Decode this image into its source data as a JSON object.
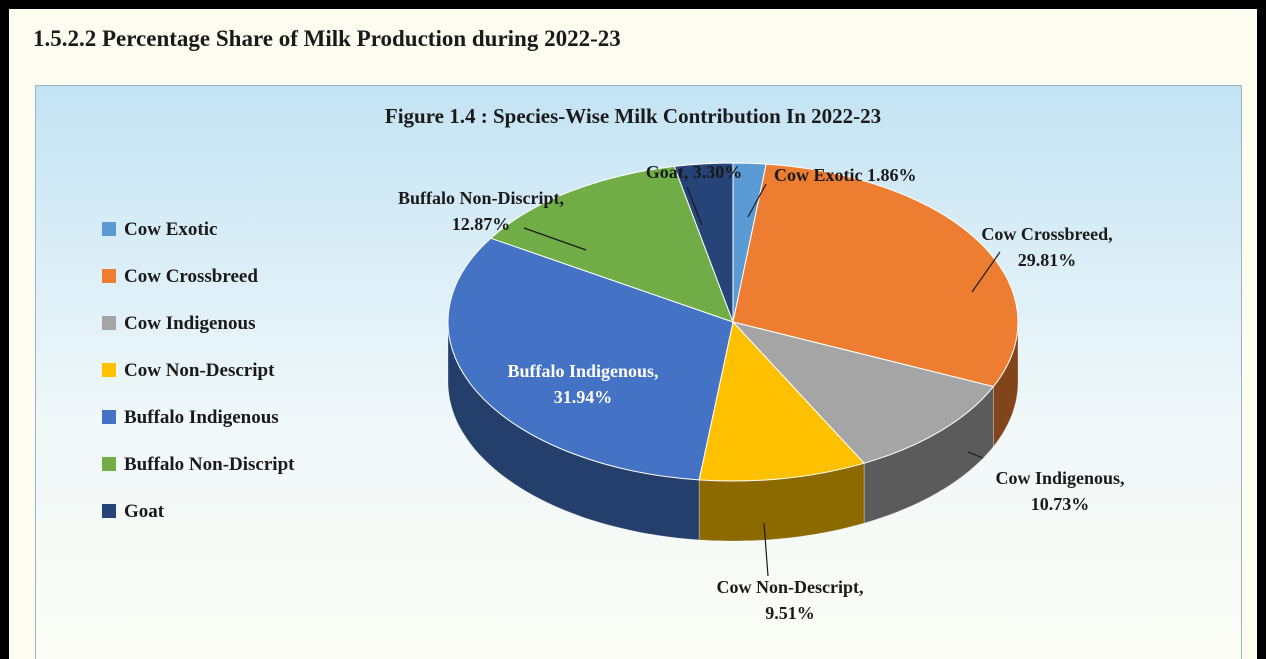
{
  "heading": "1.5.2.2  Percentage Share of Milk Production during 2022-23",
  "chart_data": {
    "type": "pie",
    "title": "Figure 1.4 : Species-Wise Milk Contribution In 2022-23",
    "legend_position": "left",
    "three_d": true,
    "slices": [
      {
        "name": "Cow Exotic",
        "value": 1.86,
        "label_lines": [
          "Cow Exotic 1.86%"
        ],
        "color": "#5b9bd5"
      },
      {
        "name": "Cow Crossbreed",
        "value": 29.81,
        "label_lines": [
          "Cow Crossbreed,",
          "29.81%"
        ],
        "color": "#ed7d31"
      },
      {
        "name": "Cow Indigenous",
        "value": 10.73,
        "label_lines": [
          "Cow Indigenous,",
          "10.73%"
        ],
        "color": "#a5a5a5"
      },
      {
        "name": "Cow Non-Descript",
        "value": 9.51,
        "label_lines": [
          "Cow Non-Descript,",
          "9.51%"
        ],
        "color": "#ffc000"
      },
      {
        "name": "Buffalo Indigenous",
        "value": 31.94,
        "label_lines": [
          "Buffalo Indigenous,",
          "31.94%"
        ],
        "color": "#4472c4"
      },
      {
        "name": "Buffalo Non-Discript",
        "value": 12.87,
        "label_lines": [
          "Buffalo Non-Discript,",
          "12.87%"
        ],
        "color": "#70ad47"
      },
      {
        "name": "Goat",
        "value": 3.3,
        "label_lines": [
          "Goat, 3.30%"
        ],
        "color": "#264478"
      }
    ]
  }
}
